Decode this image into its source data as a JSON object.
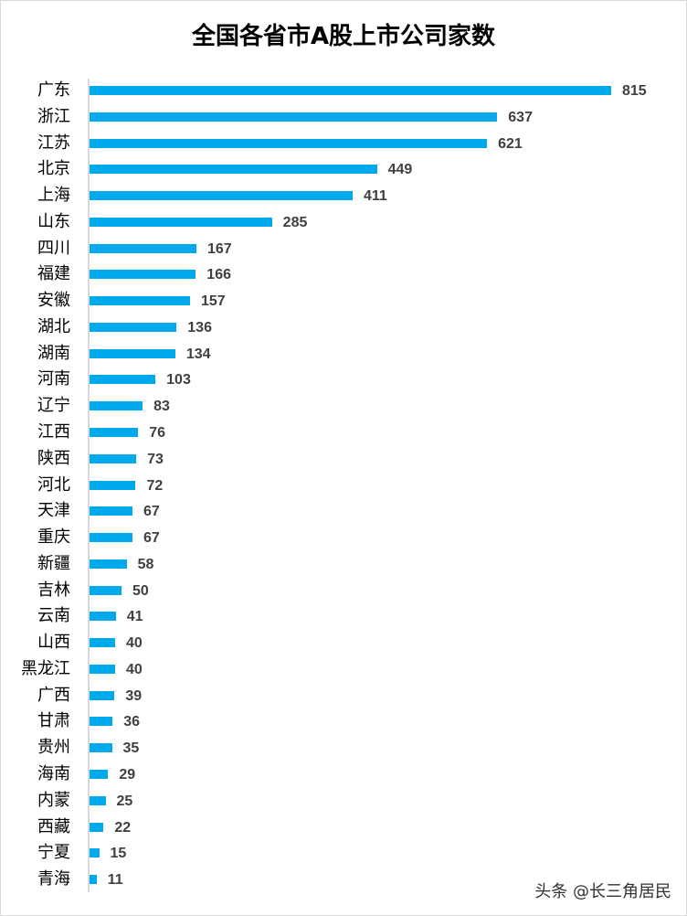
{
  "chart_data": {
    "type": "bar",
    "orientation": "horizontal",
    "title": "全国各省市A股上市公司家数",
    "xlabel": "",
    "ylabel": "",
    "xlim": [
      0,
      815
    ],
    "grid": false,
    "bar_color": "#00a9ec",
    "categories": [
      "广东",
      "浙江",
      "江苏",
      "北京",
      "上海",
      "山东",
      "四川",
      "福建",
      "安徽",
      "湖北",
      "湖南",
      "河南",
      "辽宁",
      "江西",
      "陕西",
      "河北",
      "天津",
      "重庆",
      "新疆",
      "吉林",
      "云南",
      "山西",
      "黑龙江",
      "广西",
      "甘肃",
      "贵州",
      "海南",
      "内蒙",
      "西藏",
      "宁夏",
      "青海"
    ],
    "values": [
      815,
      637,
      621,
      449,
      411,
      285,
      167,
      166,
      157,
      136,
      134,
      103,
      83,
      76,
      73,
      72,
      67,
      67,
      58,
      50,
      41,
      40,
      40,
      39,
      36,
      35,
      29,
      25,
      22,
      15,
      11
    ]
  },
  "watermark": "头条 @长三角居民"
}
